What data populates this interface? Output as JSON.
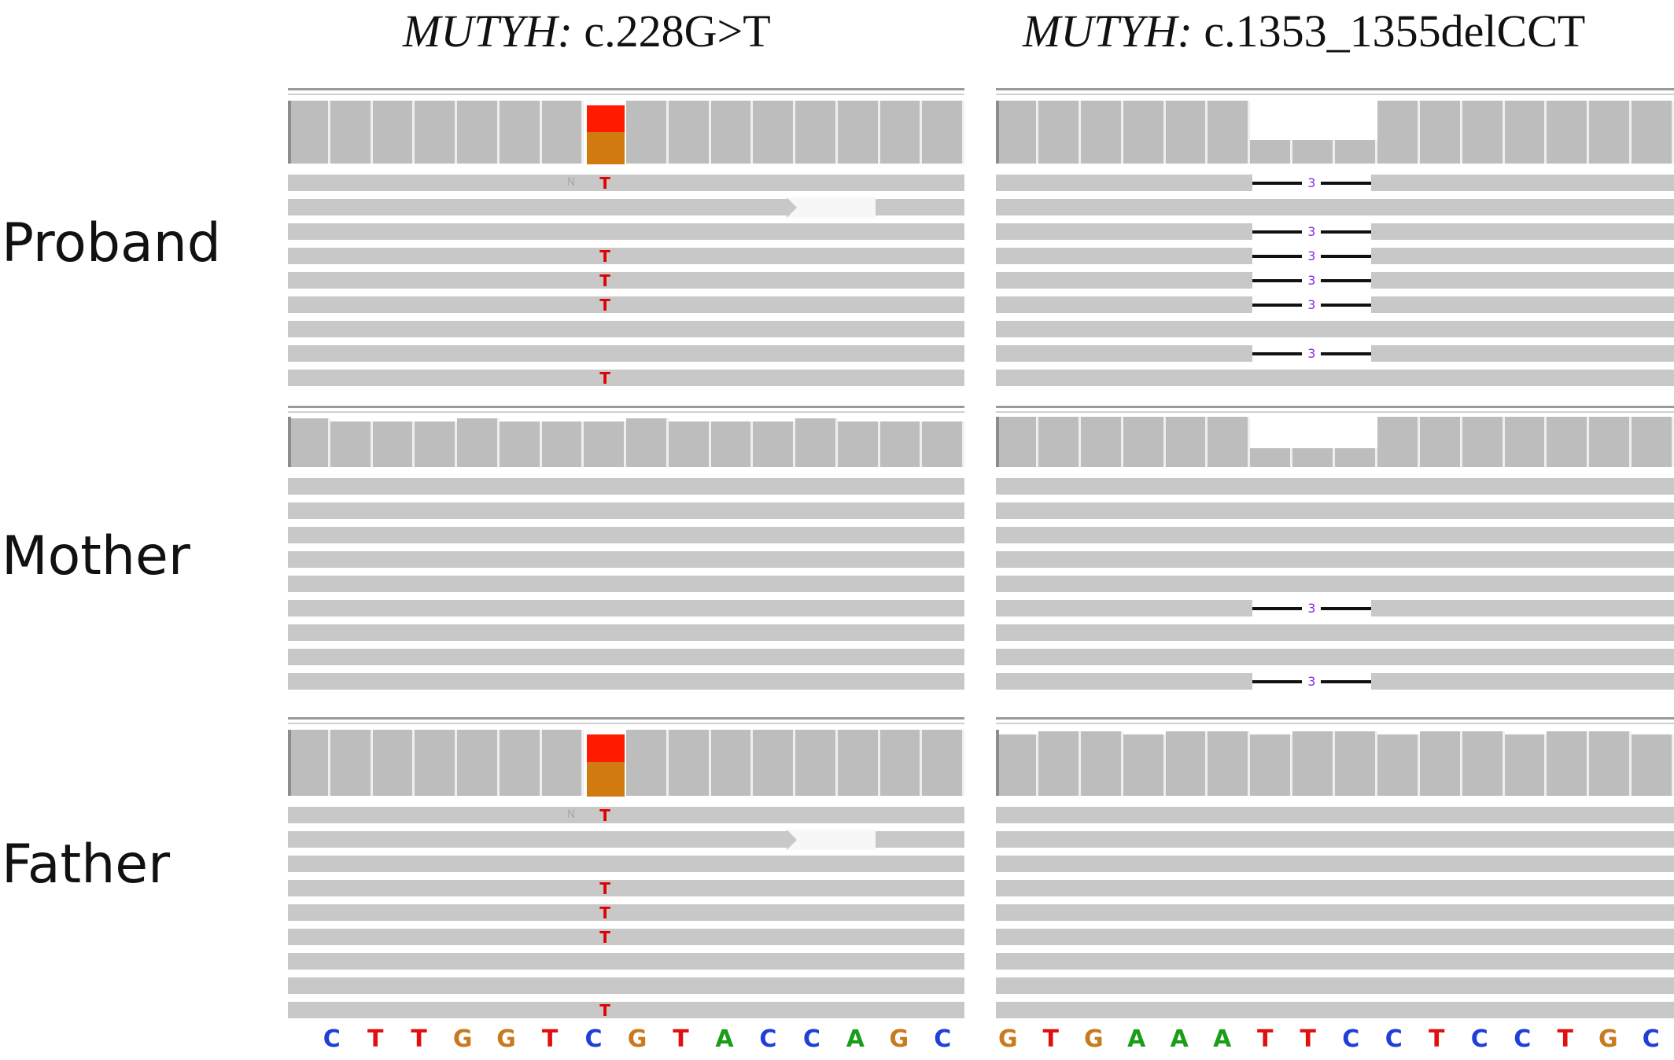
{
  "columns": [
    {
      "gene": "MUTYH:",
      "variant": "c.228G>T"
    },
    {
      "gene": "MUTYH:",
      "variant": "c.1353_1355delCCT"
    }
  ],
  "rows": [
    {
      "label": "Proband"
    },
    {
      "label": "Mother"
    },
    {
      "label": "Father"
    }
  ],
  "panels": [
    {
      "col": 0,
      "row": 0,
      "mismatch_reads": [
        0,
        3,
        4,
        5,
        8
      ],
      "soft_clip_read": 1,
      "variant_base": "T",
      "faint_base": "N",
      "coverage_split": true
    },
    {
      "col": 0,
      "row": 1,
      "mismatch_reads": [],
      "coverage_split": false
    },
    {
      "col": 0,
      "row": 2,
      "mismatch_reads": [
        0,
        3,
        4,
        5,
        8
      ],
      "soft_clip_read": 1,
      "variant_base": "T",
      "faint_base": "N",
      "coverage_split": true
    },
    {
      "col": 1,
      "row": 0,
      "deletion_reads": [
        0,
        2,
        3,
        4,
        5,
        7
      ],
      "deletion_label": "3"
    },
    {
      "col": 1,
      "row": 1,
      "deletion_reads": [
        5,
        8
      ],
      "deletion_label": "3"
    },
    {
      "col": 1,
      "row": 2,
      "deletion_reads": []
    }
  ],
  "reference_left": [
    "C",
    "T",
    "T",
    "G",
    "G",
    "T",
    "C",
    "G",
    "T",
    "A",
    "C",
    "C",
    "A",
    "G",
    "C"
  ],
  "reference_right": [
    "G",
    "T",
    "G",
    "A",
    "A",
    "A",
    "T",
    "T",
    "C",
    "C",
    "T",
    "C",
    "C",
    "T",
    "G",
    "C"
  ],
  "base_colors": {
    "A": "#1a9e1a",
    "C": "#1f3fd6",
    "G": "#c87a1e",
    "T": "#e01010"
  },
  "coverage_colors": {
    "ref": "#bdbdbd",
    "alt": "#ff1a00",
    "ref_allele_split": "#d07a10"
  }
}
